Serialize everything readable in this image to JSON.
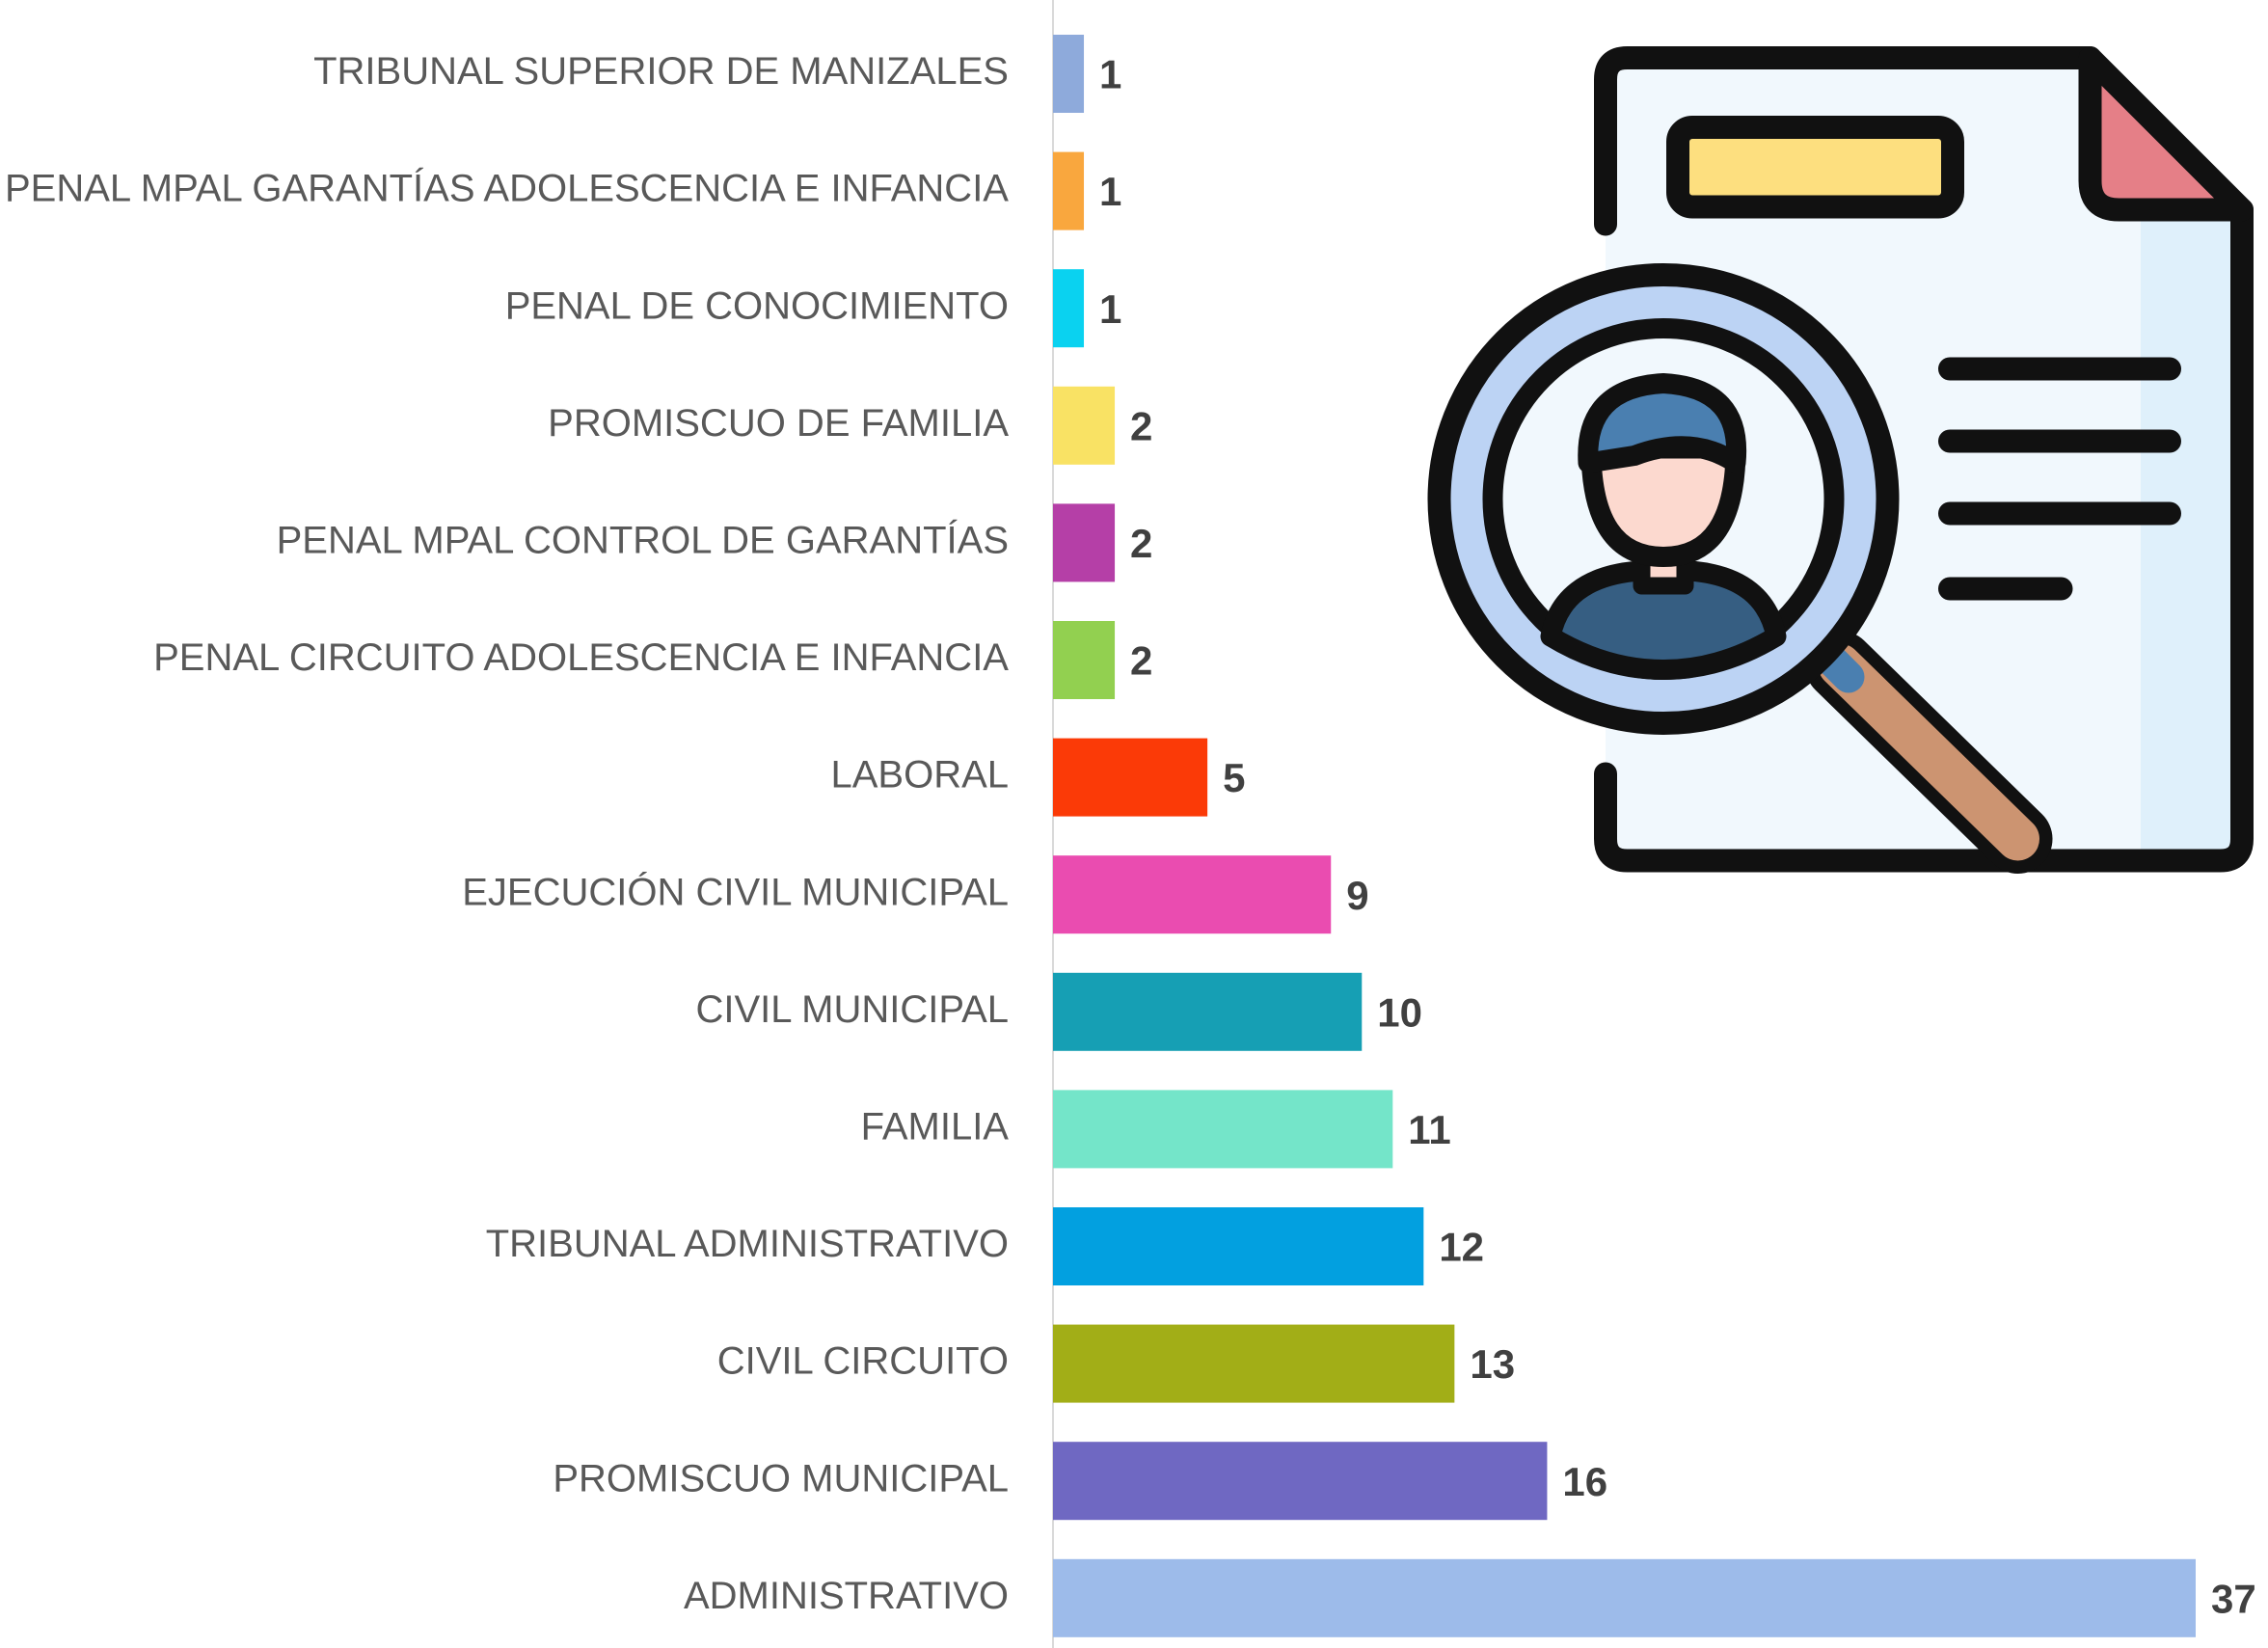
{
  "chart_data": {
    "type": "bar",
    "orientation": "horizontal",
    "categories": [
      "TRIBUNAL SUPERIOR DE MANIZALES",
      "PENAL MPAL GARANTÍAS ADOLESCENCIA E INFANCIA",
      "PENAL DE CONOCIMIENTO",
      "PROMISCUO DE FAMILIA",
      "PENAL MPAL CONTROL DE GARANTÍAS",
      "PENAL CIRCUITO ADOLESCENCIA E INFANCIA",
      "LABORAL",
      "EJECUCIÓN CIVIL MUNICIPAL",
      "CIVIL MUNICIPAL",
      "FAMILIA",
      "TRIBUNAL ADMINISTRATIVO",
      "CIVIL CIRCUITO",
      "PROMISCUO MUNICIPAL",
      "ADMINISTRATIVO"
    ],
    "values": [
      1,
      1,
      1,
      2,
      2,
      2,
      5,
      9,
      10,
      11,
      12,
      13,
      16,
      37
    ],
    "colors": [
      "#8eaadb",
      "#f9a73e",
      "#0ad2f0",
      "#f9e264",
      "#b53fa7",
      "#92d050",
      "#fb3a07",
      "#ea4cb0",
      "#169fb4",
      "#74e5c9",
      "#02a0e0",
      "#a2ae17",
      "#6f68c2",
      "#9dbbea"
    ]
  }
}
